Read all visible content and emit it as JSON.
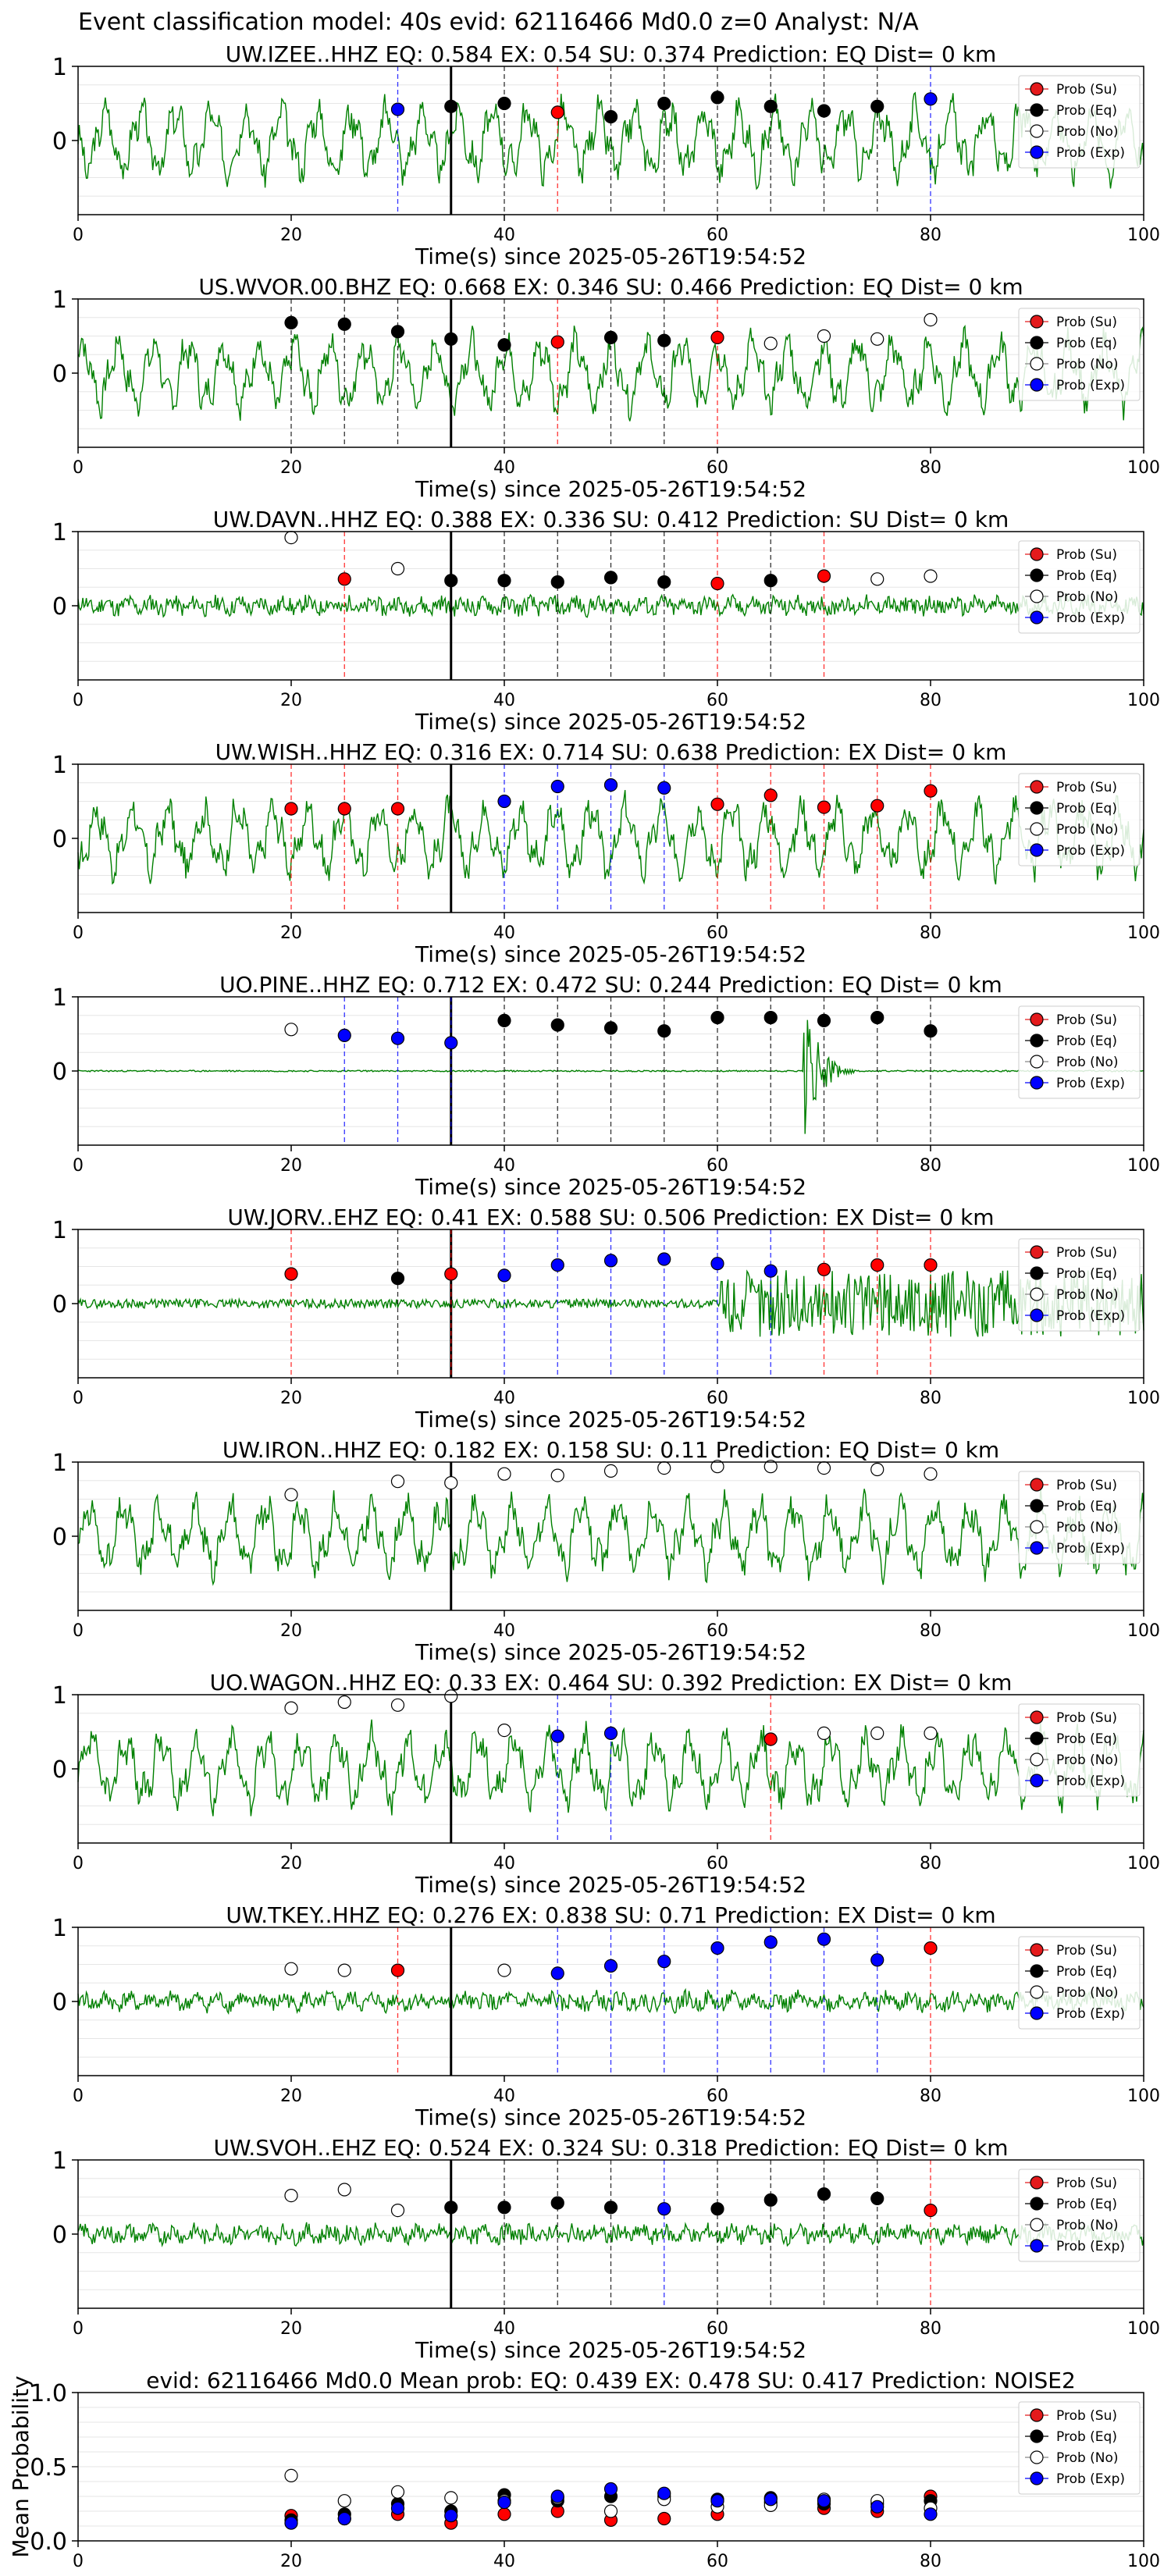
{
  "figure": {
    "suptitle": "Event classification model: 40s evid: 62116466 Md0.0 z=0 Analyst: N/A",
    "time_label": "Time(s) since 2025-05-26T19:54:52",
    "mean_ylabel": "Mean Probability"
  },
  "legend": [
    {
      "label": "Prob (Su)",
      "face": "#e41a1c"
    },
    {
      "label": "Prob (Eq)",
      "face": "#000000"
    },
    {
      "label": "Prob (No)",
      "face": "#ffffff"
    },
    {
      "label": "Prob (Exp)",
      "face": "#0000ff"
    }
  ],
  "colors": {
    "trace": "#008000",
    "su": "#ff0000",
    "eq": "#000000",
    "no": "#ffffff",
    "exp": "#0000ff"
  },
  "chart_data": [
    {
      "type": "scatter",
      "title": "UW.IZEE..HHZ   EQ: 0.584  EX: 0.54  SU: 0.374   Prediction: EQ    Dist= 0 km",
      "xlim": [
        0,
        100
      ],
      "ylim": [
        -1,
        1
      ],
      "xticks": [
        0,
        20,
        40,
        60,
        80,
        100
      ],
      "yticks": [
        1,
        0
      ],
      "pick_time": 35,
      "amp": "high",
      "seed": 3,
      "points": [
        {
          "x": 30,
          "cls": "exp",
          "p": 0.42
        },
        {
          "x": 35,
          "cls": "eq",
          "p": 0.46
        },
        {
          "x": 40,
          "cls": "eq",
          "p": 0.5
        },
        {
          "x": 45,
          "cls": "su",
          "p": 0.38
        },
        {
          "x": 50,
          "cls": "eq",
          "p": 0.32
        },
        {
          "x": 55,
          "cls": "eq",
          "p": 0.5
        },
        {
          "x": 60,
          "cls": "eq",
          "p": 0.58
        },
        {
          "x": 65,
          "cls": "eq",
          "p": 0.46
        },
        {
          "x": 70,
          "cls": "eq",
          "p": 0.4
        },
        {
          "x": 75,
          "cls": "eq",
          "p": 0.46
        },
        {
          "x": 80,
          "cls": "exp",
          "p": 0.56
        }
      ]
    },
    {
      "type": "scatter",
      "title": "US.WVOR.00.BHZ   EQ: 0.668  EX: 0.346  SU: 0.466   Prediction: EQ    Dist= 0 km",
      "xlim": [
        0,
        100
      ],
      "ylim": [
        -1,
        1
      ],
      "xticks": [
        0,
        20,
        40,
        60,
        80,
        100
      ],
      "yticks": [
        1,
        0
      ],
      "pick_time": 35,
      "amp": "high",
      "seed": 7,
      "points": [
        {
          "x": 20,
          "cls": "eq",
          "p": 0.68
        },
        {
          "x": 25,
          "cls": "eq",
          "p": 0.66
        },
        {
          "x": 30,
          "cls": "eq",
          "p": 0.56
        },
        {
          "x": 35,
          "cls": "eq",
          "p": 0.46
        },
        {
          "x": 40,
          "cls": "eq",
          "p": 0.38
        },
        {
          "x": 45,
          "cls": "su",
          "p": 0.42
        },
        {
          "x": 50,
          "cls": "eq",
          "p": 0.48
        },
        {
          "x": 55,
          "cls": "eq",
          "p": 0.44
        },
        {
          "x": 60,
          "cls": "su",
          "p": 0.48
        },
        {
          "x": 65,
          "cls": "no",
          "p": 0.4
        },
        {
          "x": 70,
          "cls": "no",
          "p": 0.5
        },
        {
          "x": 75,
          "cls": "no",
          "p": 0.46
        },
        {
          "x": 80,
          "cls": "no",
          "p": 0.72
        }
      ]
    },
    {
      "type": "scatter",
      "title": "UW.DAVN..HHZ   EQ: 0.388  EX: 0.336  SU: 0.412   Prediction: SU    Dist= 0 km",
      "xlim": [
        0,
        100
      ],
      "ylim": [
        -1,
        1
      ],
      "xticks": [
        0,
        20,
        40,
        60,
        80,
        100
      ],
      "yticks": [
        1,
        0
      ],
      "pick_time": 35,
      "amp": "low",
      "seed": 11,
      "points": [
        {
          "x": 20,
          "cls": "no",
          "p": 0.92
        },
        {
          "x": 25,
          "cls": "su",
          "p": 0.36
        },
        {
          "x": 30,
          "cls": "no",
          "p": 0.5
        },
        {
          "x": 35,
          "cls": "eq",
          "p": 0.34
        },
        {
          "x": 40,
          "cls": "eq",
          "p": 0.34
        },
        {
          "x": 45,
          "cls": "eq",
          "p": 0.32
        },
        {
          "x": 50,
          "cls": "eq",
          "p": 0.38
        },
        {
          "x": 55,
          "cls": "eq",
          "p": 0.32
        },
        {
          "x": 60,
          "cls": "su",
          "p": 0.3
        },
        {
          "x": 65,
          "cls": "eq",
          "p": 0.34
        },
        {
          "x": 70,
          "cls": "su",
          "p": 0.4
        },
        {
          "x": 75,
          "cls": "no",
          "p": 0.36
        },
        {
          "x": 80,
          "cls": "no",
          "p": 0.4
        }
      ]
    },
    {
      "type": "scatter",
      "title": "UW.WISH..HHZ   EQ: 0.316  EX: 0.714  SU: 0.638   Prediction: EX    Dist= 0 km",
      "xlim": [
        0,
        100
      ],
      "ylim": [
        -1,
        1
      ],
      "xticks": [
        0,
        20,
        40,
        60,
        80,
        100
      ],
      "yticks": [
        1,
        0
      ],
      "pick_time": 35,
      "amp": "high",
      "seed": 17,
      "points": [
        {
          "x": 20,
          "cls": "su",
          "p": 0.4
        },
        {
          "x": 25,
          "cls": "su",
          "p": 0.4
        },
        {
          "x": 30,
          "cls": "su",
          "p": 0.4
        },
        {
          "x": 40,
          "cls": "exp",
          "p": 0.5
        },
        {
          "x": 45,
          "cls": "exp",
          "p": 0.7
        },
        {
          "x": 50,
          "cls": "exp",
          "p": 0.72
        },
        {
          "x": 55,
          "cls": "exp",
          "p": 0.68
        },
        {
          "x": 60,
          "cls": "su",
          "p": 0.46
        },
        {
          "x": 65,
          "cls": "su",
          "p": 0.58
        },
        {
          "x": 70,
          "cls": "su",
          "p": 0.42
        },
        {
          "x": 75,
          "cls": "su",
          "p": 0.44
        },
        {
          "x": 80,
          "cls": "su",
          "p": 0.64
        }
      ]
    },
    {
      "type": "scatter",
      "title": "UO.PINE..HHZ   EQ: 0.712  EX: 0.472  SU: 0.244   Prediction: EQ    Dist= 0 km",
      "xlim": [
        0,
        100
      ],
      "ylim": [
        -1,
        1
      ],
      "xticks": [
        0,
        20,
        40,
        60,
        80,
        100
      ],
      "yticks": [
        1,
        0
      ],
      "pick_time": 35,
      "amp": "flat",
      "seed": 23,
      "points": [
        {
          "x": 20,
          "cls": "no",
          "p": 0.56
        },
        {
          "x": 25,
          "cls": "exp",
          "p": 0.48
        },
        {
          "x": 30,
          "cls": "exp",
          "p": 0.44
        },
        {
          "x": 35,
          "cls": "exp",
          "p": 0.38
        },
        {
          "x": 40,
          "cls": "eq",
          "p": 0.68
        },
        {
          "x": 45,
          "cls": "eq",
          "p": 0.62
        },
        {
          "x": 50,
          "cls": "eq",
          "p": 0.58
        },
        {
          "x": 55,
          "cls": "eq",
          "p": 0.54
        },
        {
          "x": 60,
          "cls": "eq",
          "p": 0.72
        },
        {
          "x": 65,
          "cls": "eq",
          "p": 0.72
        },
        {
          "x": 70,
          "cls": "eq",
          "p": 0.68
        },
        {
          "x": 75,
          "cls": "eq",
          "p": 0.72
        },
        {
          "x": 80,
          "cls": "eq",
          "p": 0.54
        }
      ]
    },
    {
      "type": "scatter",
      "title": "UW.JORV..EHZ   EQ: 0.41  EX: 0.588  SU: 0.506   Prediction: EX    Dist= 0 km",
      "xlim": [
        0,
        100
      ],
      "ylim": [
        -1,
        1
      ],
      "xticks": [
        0,
        20,
        40,
        60,
        80,
        100
      ],
      "yticks": [
        1,
        0
      ],
      "pick_time": 35,
      "amp": "burst",
      "seed": 29,
      "points": [
        {
          "x": 20,
          "cls": "su",
          "p": 0.4
        },
        {
          "x": 30,
          "cls": "eq",
          "p": 0.34
        },
        {
          "x": 35,
          "cls": "su",
          "p": 0.4
        },
        {
          "x": 40,
          "cls": "exp",
          "p": 0.38
        },
        {
          "x": 45,
          "cls": "exp",
          "p": 0.52
        },
        {
          "x": 50,
          "cls": "exp",
          "p": 0.58
        },
        {
          "x": 55,
          "cls": "exp",
          "p": 0.6
        },
        {
          "x": 60,
          "cls": "exp",
          "p": 0.54
        },
        {
          "x": 65,
          "cls": "exp",
          "p": 0.44
        },
        {
          "x": 70,
          "cls": "su",
          "p": 0.46
        },
        {
          "x": 75,
          "cls": "su",
          "p": 0.52
        },
        {
          "x": 80,
          "cls": "su",
          "p": 0.52
        }
      ]
    },
    {
      "type": "scatter",
      "title": "UW.IRON..HHZ   EQ: 0.182  EX: 0.158  SU: 0.11   Prediction: EQ    Dist= 0 km",
      "xlim": [
        0,
        100
      ],
      "ylim": [
        -1,
        1
      ],
      "xticks": [
        0,
        20,
        40,
        60,
        80,
        100
      ],
      "yticks": [
        1,
        0
      ],
      "pick_time": 35,
      "amp": "high",
      "seed": 31,
      "points": [
        {
          "x": 20,
          "cls": "no",
          "p": 0.56
        },
        {
          "x": 30,
          "cls": "no",
          "p": 0.74
        },
        {
          "x": 35,
          "cls": "no",
          "p": 0.72
        },
        {
          "x": 40,
          "cls": "no",
          "p": 0.84
        },
        {
          "x": 45,
          "cls": "no",
          "p": 0.82
        },
        {
          "x": 50,
          "cls": "no",
          "p": 0.88
        },
        {
          "x": 55,
          "cls": "no",
          "p": 0.92
        },
        {
          "x": 60,
          "cls": "no",
          "p": 0.94
        },
        {
          "x": 65,
          "cls": "no",
          "p": 0.94
        },
        {
          "x": 70,
          "cls": "no",
          "p": 0.92
        },
        {
          "x": 75,
          "cls": "no",
          "p": 0.9
        },
        {
          "x": 80,
          "cls": "no",
          "p": 0.84
        }
      ]
    },
    {
      "type": "scatter",
      "title": "UO.WAGON..HHZ   EQ: 0.33  EX: 0.464  SU: 0.392   Prediction: EX    Dist= 0 km",
      "xlim": [
        0,
        100
      ],
      "ylim": [
        -1,
        1
      ],
      "xticks": [
        0,
        20,
        40,
        60,
        80,
        100
      ],
      "yticks": [
        1,
        0
      ],
      "pick_time": 35,
      "amp": "high",
      "seed": 37,
      "points": [
        {
          "x": 20,
          "cls": "no",
          "p": 0.82
        },
        {
          "x": 25,
          "cls": "no",
          "p": 0.9
        },
        {
          "x": 30,
          "cls": "no",
          "p": 0.86
        },
        {
          "x": 35,
          "cls": "no",
          "p": 0.98
        },
        {
          "x": 40,
          "cls": "no",
          "p": 0.52
        },
        {
          "x": 45,
          "cls": "exp",
          "p": 0.44
        },
        {
          "x": 50,
          "cls": "exp",
          "p": 0.48
        },
        {
          "x": 65,
          "cls": "su",
          "p": 0.4
        },
        {
          "x": 70,
          "cls": "no",
          "p": 0.48
        },
        {
          "x": 75,
          "cls": "no",
          "p": 0.48
        },
        {
          "x": 80,
          "cls": "no",
          "p": 0.48
        }
      ]
    },
    {
      "type": "scatter",
      "title": "UW.TKEY..HHZ   EQ: 0.276  EX: 0.838  SU: 0.71   Prediction: EX    Dist= 0 km",
      "xlim": [
        0,
        100
      ],
      "ylim": [
        -1,
        1
      ],
      "xticks": [
        0,
        20,
        40,
        60,
        80,
        100
      ],
      "yticks": [
        1,
        0
      ],
      "pick_time": 35,
      "amp": "low",
      "seed": 41,
      "points": [
        {
          "x": 20,
          "cls": "no",
          "p": 0.44
        },
        {
          "x": 25,
          "cls": "no",
          "p": 0.42
        },
        {
          "x": 30,
          "cls": "su",
          "p": 0.42
        },
        {
          "x": 40,
          "cls": "no",
          "p": 0.42
        },
        {
          "x": 45,
          "cls": "exp",
          "p": 0.38
        },
        {
          "x": 50,
          "cls": "exp",
          "p": 0.48
        },
        {
          "x": 55,
          "cls": "exp",
          "p": 0.54
        },
        {
          "x": 60,
          "cls": "exp",
          "p": 0.72
        },
        {
          "x": 65,
          "cls": "exp",
          "p": 0.8
        },
        {
          "x": 70,
          "cls": "exp",
          "p": 0.84
        },
        {
          "x": 75,
          "cls": "exp",
          "p": 0.56
        },
        {
          "x": 80,
          "cls": "su",
          "p": 0.72
        }
      ]
    },
    {
      "type": "scatter",
      "title": "UW.SVOH..EHZ   EQ: 0.524  EX: 0.324  SU: 0.318   Prediction: EQ    Dist= 0 km",
      "xlim": [
        0,
        100
      ],
      "ylim": [
        -1,
        1
      ],
      "xticks": [
        0,
        20,
        40,
        60,
        80,
        100
      ],
      "yticks": [
        1,
        0
      ],
      "pick_time": 35,
      "amp": "low",
      "seed": 43,
      "points": [
        {
          "x": 20,
          "cls": "no",
          "p": 0.52
        },
        {
          "x": 25,
          "cls": "no",
          "p": 0.6
        },
        {
          "x": 30,
          "cls": "no",
          "p": 0.32
        },
        {
          "x": 35,
          "cls": "eq",
          "p": 0.36
        },
        {
          "x": 40,
          "cls": "eq",
          "p": 0.36
        },
        {
          "x": 45,
          "cls": "eq",
          "p": 0.42
        },
        {
          "x": 50,
          "cls": "eq",
          "p": 0.36
        },
        {
          "x": 55,
          "cls": "exp",
          "p": 0.34
        },
        {
          "x": 60,
          "cls": "eq",
          "p": 0.34
        },
        {
          "x": 65,
          "cls": "eq",
          "p": 0.46
        },
        {
          "x": 70,
          "cls": "eq",
          "p": 0.54
        },
        {
          "x": 75,
          "cls": "eq",
          "p": 0.48
        },
        {
          "x": 80,
          "cls": "su",
          "p": 0.32
        }
      ]
    },
    {
      "type": "scatter",
      "title": "evid: 62116466  Md0.0   Mean prob:   EQ: 0.439  EX: 0.478  SU: 0.417   Prediction: NOISE2",
      "xlim": [
        0,
        100
      ],
      "ylim": [
        0,
        1
      ],
      "xticks": [
        0,
        20,
        40,
        60,
        80,
        100
      ],
      "yticks": [
        1.0,
        0.5,
        0.0
      ],
      "ylabel": "Mean Probability",
      "series": [
        {
          "cls": "su",
          "name": "Prob (Su)",
          "x": [
            20,
            25,
            30,
            35,
            40,
            45,
            50,
            55,
            60,
            65,
            70,
            75,
            80
          ],
          "y": [
            0.17,
            0.15,
            0.18,
            0.12,
            0.18,
            0.2,
            0.14,
            0.15,
            0.18,
            0.26,
            0.22,
            0.2,
            0.3
          ]
        },
        {
          "cls": "eq",
          "name": "Prob (Eq)",
          "x": [
            20,
            25,
            30,
            35,
            40,
            45,
            50,
            55,
            60,
            65,
            70,
            75,
            80
          ],
          "y": [
            0.14,
            0.18,
            0.25,
            0.2,
            0.31,
            0.27,
            0.3,
            0.3,
            0.28,
            0.29,
            0.25,
            0.25,
            0.27
          ]
        },
        {
          "cls": "no",
          "name": "Prob (No)",
          "x": [
            20,
            25,
            30,
            35,
            40,
            45,
            50,
            55,
            60,
            65,
            70,
            75,
            80
          ],
          "y": [
            0.44,
            0.27,
            0.33,
            0.29,
            0.27,
            0.29,
            0.2,
            0.28,
            0.23,
            0.24,
            0.28,
            0.27,
            0.22
          ]
        },
        {
          "cls": "exp",
          "name": "Prob (Exp)",
          "x": [
            20,
            25,
            30,
            35,
            40,
            45,
            50,
            55,
            60,
            65,
            70,
            75,
            80
          ],
          "y": [
            0.12,
            0.15,
            0.22,
            0.17,
            0.26,
            0.3,
            0.35,
            0.32,
            0.27,
            0.28,
            0.27,
            0.23,
            0.18
          ]
        }
      ]
    }
  ]
}
